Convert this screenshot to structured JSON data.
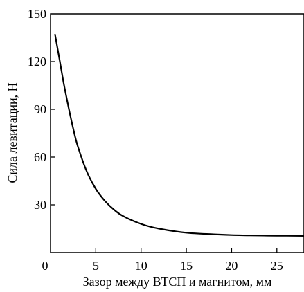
{
  "chart_data": {
    "type": "line",
    "title": "",
    "xlabel": "Зазор между ВТСП и магнитом, мм",
    "ylabel": "Сила левитации, Н",
    "xlim": [
      0,
      28
    ],
    "ylim": [
      0,
      150
    ],
    "xticks": [
      0,
      5,
      10,
      15,
      20,
      25
    ],
    "yticks": [
      30,
      60,
      90,
      120,
      150
    ],
    "grid": false,
    "legend": "none",
    "line_color": "#000000",
    "series": [
      {
        "x": [
          0.5,
          1,
          1.5,
          2,
          2.5,
          3,
          4,
          5,
          6,
          7,
          8,
          10,
          12,
          15,
          18,
          20,
          22,
          25,
          28
        ],
        "y": [
          137,
          121,
          105,
          91,
          78,
          67,
          51,
          40,
          32.5,
          27,
          23,
          18,
          15,
          12.5,
          11.5,
          11,
          10.8,
          10.6,
          10.5
        ]
      }
    ]
  }
}
